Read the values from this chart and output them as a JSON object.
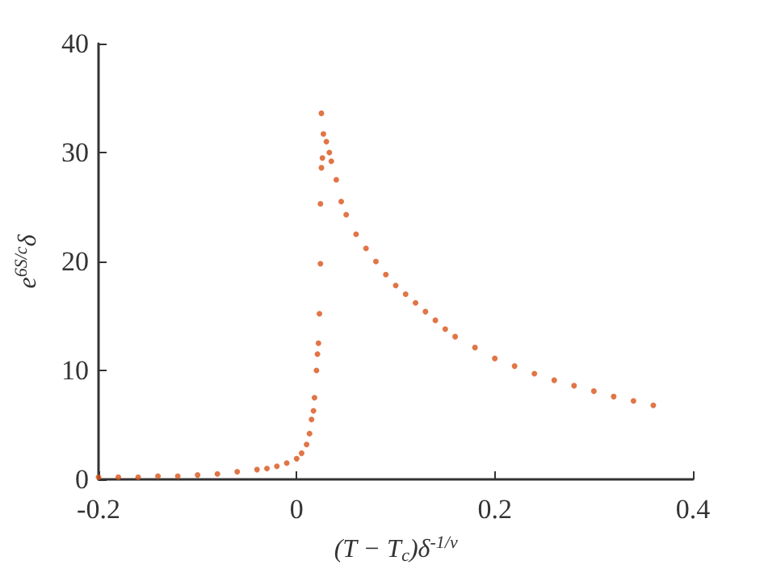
{
  "chart_data": {
    "type": "scatter",
    "xlabel": "(T − T$_{c}$)δ$^{-1/ν}$",
    "ylabel": "e$^{6S/c}$δ",
    "x": [
      -0.2,
      -0.18,
      -0.16,
      -0.14,
      -0.12,
      -0.1,
      -0.08,
      -0.06,
      -0.04,
      -0.03,
      -0.02,
      -0.01,
      0,
      0.005,
      0.01,
      0.013,
      0.015,
      0.017,
      0.018,
      0.02,
      0.021,
      0.022,
      0.023,
      0.024,
      0.024,
      0.025,
      0.026,
      0.025,
      0.027,
      0.03,
      0.033,
      0.035,
      0.04,
      0.045,
      0.05,
      0.06,
      0.07,
      0.08,
      0.09,
      0.1,
      0.11,
      0.12,
      0.13,
      0.14,
      0.15,
      0.16,
      0.18,
      0.2,
      0.22,
      0.24,
      0.26,
      0.28,
      0.3,
      0.32,
      0.34,
      0.36
    ],
    "series": [
      {
        "color": "#d95319",
        "values": [
          0.2,
          0.2,
          0.2,
          0.3,
          0.3,
          0.4,
          0.5,
          0.7,
          0.9,
          1.0,
          1.2,
          1.5,
          1.9,
          2.4,
          3.2,
          4.2,
          5.5,
          6.3,
          7.5,
          10,
          11.5,
          12.5,
          15.2,
          19.8,
          25.3,
          28.6,
          29.5,
          33.6,
          31.7,
          31,
          30,
          29.2,
          27.5,
          25.5,
          24.3,
          22.5,
          21.2,
          20,
          18.8,
          17.8,
          17,
          16.2,
          15.4,
          14.6,
          13.8,
          13.1,
          12.1,
          11.1,
          10.4,
          9.7,
          9.1,
          8.6,
          8.1,
          7.6,
          7.2,
          6.8
        ]
      }
    ],
    "xlim": [
      -0.2,
      0.4
    ],
    "xticks": [
      -0.2,
      0,
      0.2,
      0.4
    ],
    "ylim": [
      0,
      40
    ],
    "yticks": [
      0,
      10,
      20,
      30,
      40
    ],
    "grid": false,
    "marker": "circle"
  }
}
